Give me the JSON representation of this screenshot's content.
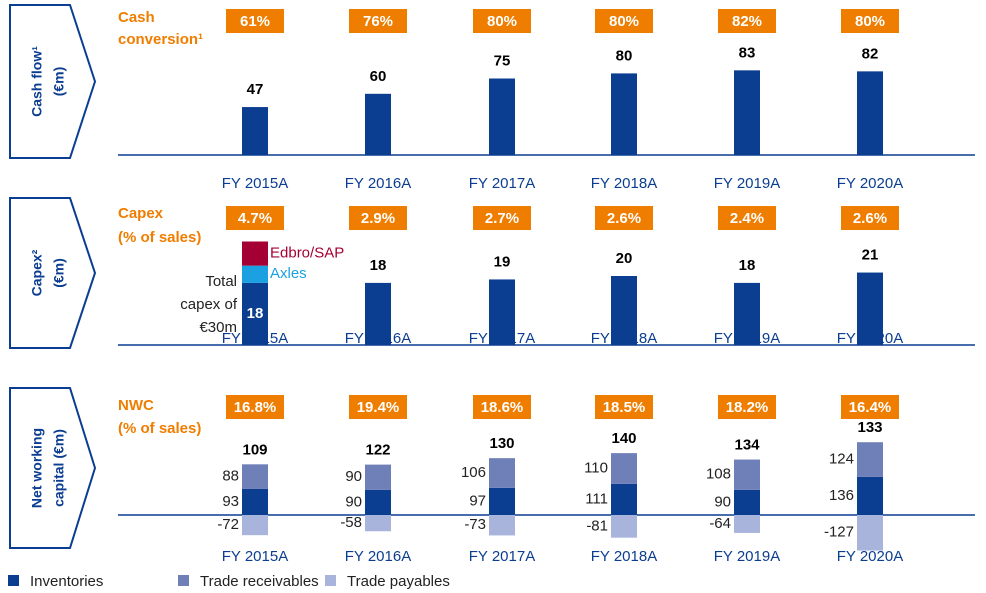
{
  "chart_data": [
    {
      "type": "bar",
      "side_label": [
        "Cash flow¹",
        "(€m)"
      ],
      "ratio_label": [
        "Cash",
        "conversion¹"
      ],
      "categories": [
        "FY 2015A",
        "FY 2016A",
        "FY 2017A",
        "FY 2018A",
        "FY 2019A",
        "FY 2020A"
      ],
      "values": [
        47,
        60,
        75,
        80,
        83,
        82
      ],
      "color": "#0b3d91",
      "ratio": {
        "values": [
          61,
          76,
          80,
          80,
          82,
          80
        ],
        "value_labels": [
          "61%",
          "76%",
          "80%",
          "80%",
          "82%",
          "80%"
        ],
        "color": "#ef7d00"
      }
    },
    {
      "type": "bar",
      "side_label": [
        "Capex²",
        "(€m)"
      ],
      "ratio_label": [
        "Capex",
        "(% of sales)"
      ],
      "categories": [
        "FY 2015A",
        "FY 2016A",
        "FY 2017A",
        "FY 2018A",
        "FY 2019A",
        "FY 2020A"
      ],
      "values": [
        18,
        18,
        19,
        20,
        18,
        21
      ],
      "color": "#0b3d91",
      "segments": [
        {
          "name": "Axles",
          "color": "#1ba1e2",
          "values": [
            5,
            null,
            null,
            null,
            null,
            null
          ]
        },
        {
          "name": "Edbro/SAP",
          "color": "#a50034",
          "values": [
            7,
            null,
            null,
            null,
            null,
            null
          ]
        }
      ],
      "annotation": [
        "Total",
        "capex of",
        "€30m"
      ],
      "ratio": {
        "values": [
          4.7,
          2.9,
          2.7,
          2.6,
          2.4,
          2.6
        ],
        "value_labels": [
          "4.7%",
          "2.9%",
          "2.7%",
          "2.6%",
          "2.4%",
          "2.6%"
        ],
        "color": "#ef7d00"
      }
    },
    {
      "type": "stacked_bar",
      "side_label": [
        "Net working",
        "capital (€m)"
      ],
      "ratio_label": [
        "NWC",
        "(% of sales)"
      ],
      "categories": [
        "FY 2015A",
        "FY 2016A",
        "FY 2017A",
        "FY 2018A",
        "FY 2019A",
        "FY 2020A"
      ],
      "series": [
        {
          "name": "Inventories",
          "color": "#0b3d91",
          "values": [
            93,
            90,
            97,
            111,
            90,
            136
          ]
        },
        {
          "name": "Trade receivables",
          "color": "#6f7fb8",
          "values": [
            88,
            90,
            106,
            110,
            108,
            124
          ]
        },
        {
          "name": "Trade payables",
          "color": "#a9b4dc",
          "values": [
            -72,
            -58,
            -73,
            -81,
            -64,
            -127
          ]
        }
      ],
      "totals": [
        109,
        122,
        130,
        140,
        134,
        133
      ],
      "ratio": {
        "values": [
          16.8,
          19.4,
          18.6,
          18.5,
          18.2,
          16.4
        ],
        "value_labels": [
          "16.8%",
          "19.4%",
          "18.6%",
          "18.5%",
          "18.2%",
          "16.4%"
        ],
        "color": "#ef7d00"
      }
    }
  ]
}
